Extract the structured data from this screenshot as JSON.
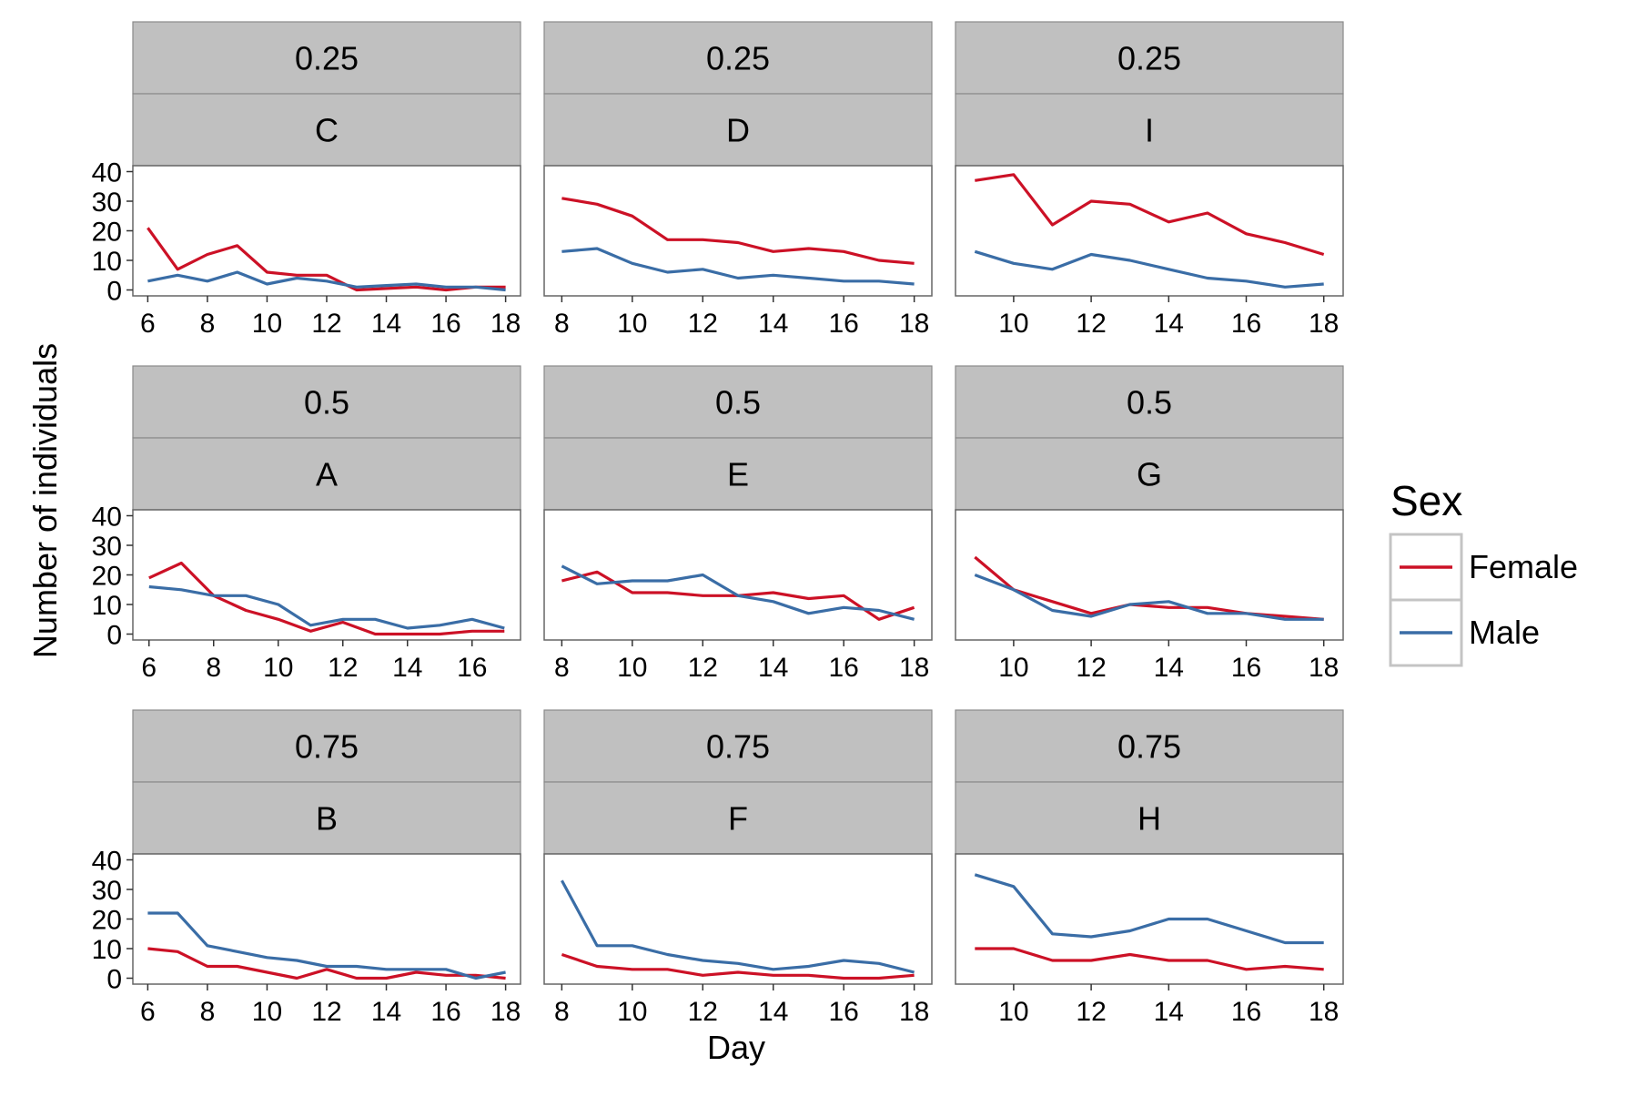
{
  "chart_data": {
    "type": "line",
    "xlabel": "Day",
    "ylabel": "Number of individuals",
    "legend": {
      "title": "Sex",
      "position": "right"
    },
    "series_names": [
      "Female",
      "Male"
    ],
    "colors": {
      "Female": "#cc1126",
      "Male": "#3a6da6",
      "strip": "#c0c0c0"
    },
    "panels": [
      {
        "strip_top": "0.25",
        "strip_bottom": "C",
        "xlim": [
          5.5,
          18.5
        ],
        "xticks": [
          6,
          8,
          10,
          12,
          14,
          16,
          18
        ],
        "ylim": [
          -2,
          42
        ],
        "yticks": [
          0,
          10,
          20,
          30,
          40
        ],
        "series": [
          {
            "name": "Female",
            "x": [
              6,
              7,
              8,
              9,
              10,
              11,
              12,
              13,
              14,
              15,
              16,
              17,
              18
            ],
            "values": [
              21,
              7,
              12,
              15,
              6,
              5,
              5,
              0,
              0.5,
              1,
              0,
              1,
              1
            ]
          },
          {
            "name": "Male",
            "x": [
              6,
              7,
              8,
              9,
              10,
              11,
              12,
              13,
              14,
              15,
              16,
              17,
              18
            ],
            "values": [
              3,
              5,
              3,
              6,
              2,
              4,
              3,
              1,
              1.5,
              2,
              1,
              1,
              0
            ]
          }
        ]
      },
      {
        "strip_top": "0.25",
        "strip_bottom": "D",
        "xlim": [
          7.5,
          18.5
        ],
        "xticks": [
          8,
          10,
          12,
          14,
          16,
          18
        ],
        "ylim": [
          -2,
          42
        ],
        "yticks": [
          0,
          10,
          20,
          30,
          40
        ],
        "series": [
          {
            "name": "Female",
            "x": [
              8,
              9,
              10,
              11,
              12,
              13,
              14,
              15,
              16,
              17,
              18
            ],
            "values": [
              31,
              29,
              25,
              17,
              17,
              16,
              13,
              14,
              13,
              10,
              9
            ]
          },
          {
            "name": "Male",
            "x": [
              8,
              9,
              10,
              11,
              12,
              13,
              14,
              15,
              16,
              17,
              18
            ],
            "values": [
              13,
              14,
              9,
              6,
              7,
              4,
              5,
              4,
              3,
              3,
              2
            ]
          }
        ]
      },
      {
        "strip_top": "0.25",
        "strip_bottom": "I",
        "xlim": [
          8.5,
          18.5
        ],
        "xticks": [
          10,
          12,
          14,
          16,
          18
        ],
        "ylim": [
          -2,
          42
        ],
        "yticks": [
          0,
          10,
          20,
          30,
          40
        ],
        "series": [
          {
            "name": "Female",
            "x": [
              9,
              10,
              11,
              12,
              13,
              14,
              15,
              16,
              17,
              18
            ],
            "values": [
              37,
              39,
              22,
              30,
              29,
              23,
              26,
              19,
              16,
              12
            ]
          },
          {
            "name": "Male",
            "x": [
              9,
              10,
              11,
              12,
              13,
              14,
              15,
              16,
              17,
              18
            ],
            "values": [
              13,
              9,
              7,
              12,
              10,
              7,
              4,
              3,
              1,
              2
            ]
          }
        ]
      },
      {
        "strip_top": "0.5",
        "strip_bottom": "A",
        "xlim": [
          5.5,
          17.5
        ],
        "xticks": [
          6,
          8,
          10,
          12,
          14,
          16
        ],
        "ylim": [
          -2,
          42
        ],
        "yticks": [
          0,
          10,
          20,
          30,
          40
        ],
        "series": [
          {
            "name": "Female",
            "x": [
              6,
              7,
              8,
              9,
              10,
              11,
              12,
              13,
              14,
              15,
              16,
              17
            ],
            "values": [
              19,
              24,
              13,
              8,
              5,
              1,
              4,
              0,
              0,
              0,
              1,
              1
            ]
          },
          {
            "name": "Male",
            "x": [
              6,
              7,
              8,
              9,
              10,
              11,
              12,
              13,
              14,
              15,
              16,
              17
            ],
            "values": [
              16,
              15,
              13,
              13,
              10,
              3,
              5,
              5,
              2,
              3,
              5,
              2
            ]
          }
        ]
      },
      {
        "strip_top": "0.5",
        "strip_bottom": "E",
        "xlim": [
          7.5,
          18.5
        ],
        "xticks": [
          8,
          10,
          12,
          14,
          16,
          18
        ],
        "ylim": [
          -2,
          42
        ],
        "yticks": [
          0,
          10,
          20,
          30,
          40
        ],
        "series": [
          {
            "name": "Female",
            "x": [
              8,
              9,
              10,
              11,
              12,
              13,
              14,
              15,
              16,
              17,
              18
            ],
            "values": [
              18,
              21,
              14,
              14,
              13,
              13,
              14,
              12,
              13,
              5,
              9
            ]
          },
          {
            "name": "Male",
            "x": [
              8,
              9,
              10,
              11,
              12,
              13,
              14,
              15,
              16,
              17,
              18
            ],
            "values": [
              23,
              17,
              18,
              18,
              20,
              13,
              11,
              7,
              9,
              8,
              5
            ]
          }
        ]
      },
      {
        "strip_top": "0.5",
        "strip_bottom": "G",
        "xlim": [
          8.5,
          18.5
        ],
        "xticks": [
          10,
          12,
          14,
          16,
          18
        ],
        "ylim": [
          -2,
          42
        ],
        "yticks": [
          0,
          10,
          20,
          30,
          40
        ],
        "series": [
          {
            "name": "Female",
            "x": [
              9,
              10,
              11,
              12,
              13,
              14,
              15,
              16,
              17,
              18
            ],
            "values": [
              26,
              15,
              11,
              7,
              10,
              9,
              9,
              7,
              6,
              5
            ]
          },
          {
            "name": "Male",
            "x": [
              9,
              10,
              11,
              12,
              13,
              14,
              15,
              16,
              17,
              18
            ],
            "values": [
              20,
              15,
              8,
              6,
              10,
              11,
              7,
              7,
              5,
              5
            ]
          }
        ]
      },
      {
        "strip_top": "0.75",
        "strip_bottom": "B",
        "xlim": [
          5.5,
          18.5
        ],
        "xticks": [
          6,
          8,
          10,
          12,
          14,
          16,
          18
        ],
        "ylim": [
          -2,
          42
        ],
        "yticks": [
          0,
          10,
          20,
          30,
          40
        ],
        "series": [
          {
            "name": "Female",
            "x": [
              6,
              7,
              8,
              9,
              10,
              11,
              12,
              13,
              14,
              15,
              16,
              17,
              18
            ],
            "values": [
              10,
              9,
              4,
              4,
              2,
              0,
              3,
              0,
              0,
              2,
              1,
              1,
              0
            ]
          },
          {
            "name": "Male",
            "x": [
              6,
              7,
              8,
              9,
              10,
              11,
              12,
              13,
              14,
              15,
              16,
              17,
              18
            ],
            "values": [
              22,
              22,
              11,
              9,
              7,
              6,
              4,
              4,
              3,
              3,
              3,
              0,
              2
            ]
          }
        ]
      },
      {
        "strip_top": "0.75",
        "strip_bottom": "F",
        "xlim": [
          7.5,
          18.5
        ],
        "xticks": [
          8,
          10,
          12,
          14,
          16,
          18
        ],
        "ylim": [
          -2,
          42
        ],
        "yticks": [
          0,
          10,
          20,
          30,
          40
        ],
        "series": [
          {
            "name": "Female",
            "x": [
              8,
              9,
              10,
              11,
              12,
              13,
              14,
              15,
              16,
              17,
              18
            ],
            "values": [
              8,
              4,
              3,
              3,
              1,
              2,
              1,
              1,
              0,
              0,
              1
            ]
          },
          {
            "name": "Male",
            "x": [
              8,
              9,
              10,
              11,
              12,
              13,
              14,
              15,
              16,
              17,
              18
            ],
            "values": [
              33,
              11,
              11,
              8,
              6,
              5,
              3,
              4,
              6,
              5,
              2
            ]
          }
        ]
      },
      {
        "strip_top": "0.75",
        "strip_bottom": "H",
        "xlim": [
          8.5,
          18.5
        ],
        "xticks": [
          10,
          12,
          14,
          16,
          18
        ],
        "ylim": [
          -2,
          42
        ],
        "yticks": [
          0,
          10,
          20,
          30,
          40
        ],
        "series": [
          {
            "name": "Female",
            "x": [
              9,
              10,
              11,
              12,
              13,
              14,
              15,
              16,
              17,
              18
            ],
            "values": [
              10,
              10,
              6,
              6,
              8,
              6,
              6,
              3,
              4,
              3
            ]
          },
          {
            "name": "Male",
            "x": [
              9,
              10,
              11,
              12,
              13,
              14,
              15,
              16,
              17,
              18
            ],
            "values": [
              35,
              31,
              15,
              14,
              16,
              20,
              20,
              16,
              12,
              12
            ]
          }
        ]
      }
    ]
  }
}
